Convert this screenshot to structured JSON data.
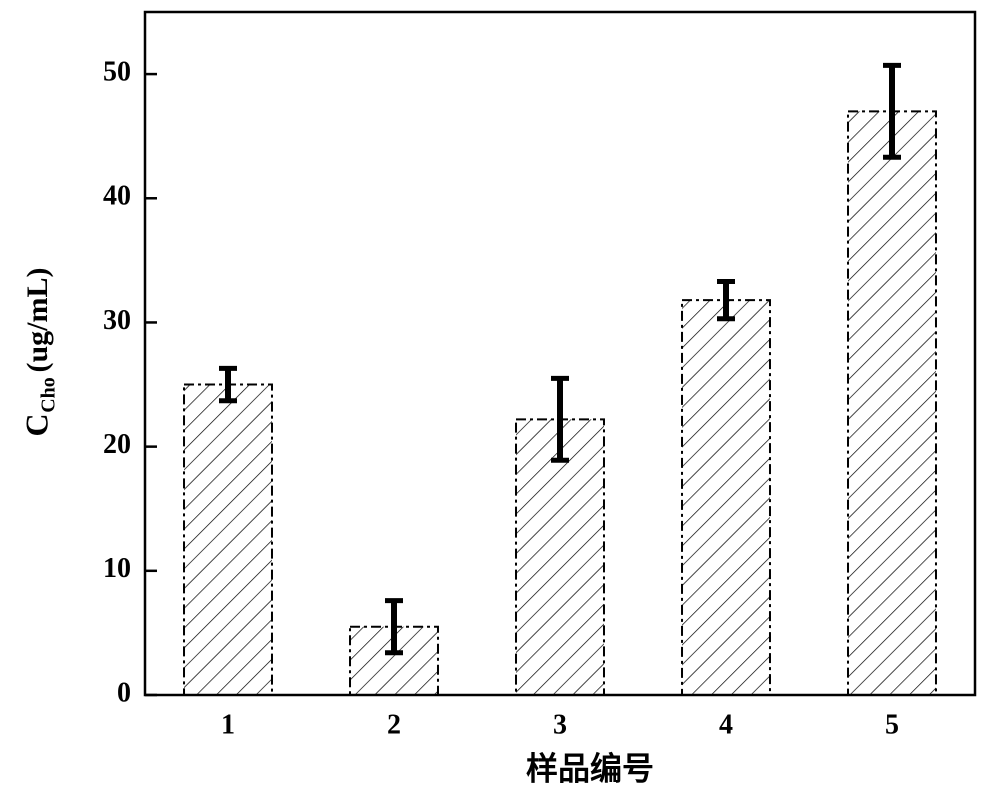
{
  "chart_data": {
    "type": "bar",
    "categories": [
      "1",
      "2",
      "3",
      "4",
      "5"
    ],
    "values": [
      25,
      5.5,
      22.2,
      31.8,
      47
    ],
    "errors": [
      1.3,
      2.1,
      3.3,
      1.5,
      3.7
    ],
    "color": "#000000",
    "xlabel": "样品编号",
    "ylabel": "C",
    "ylabel_sub": "Cho",
    "ylabel_unit": "(ug/mL)",
    "ylim": [
      0,
      55
    ],
    "yticks": [
      0,
      10,
      20,
      30,
      40,
      50
    ],
    "grid": false
  }
}
